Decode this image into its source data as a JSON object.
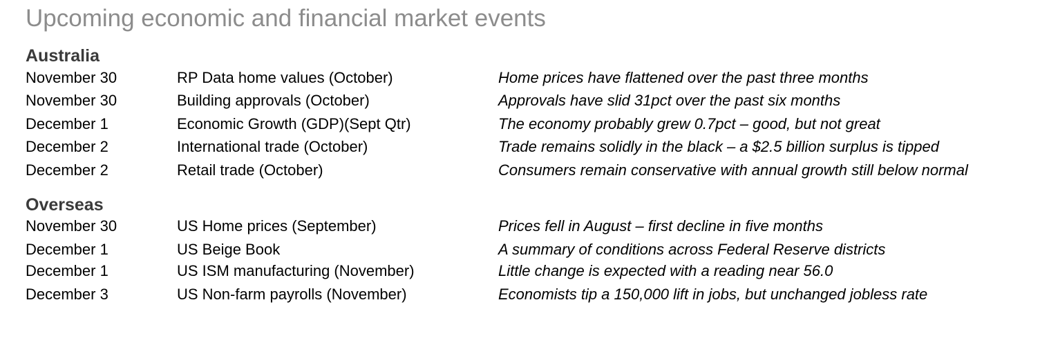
{
  "title": "Upcoming economic and financial market events",
  "sections": [
    {
      "heading": "Australia",
      "rows": [
        {
          "date": "November 30",
          "event": "RP Data home values (October)",
          "comment": "Home prices have flattened over the past three months"
        },
        {
          "date": "November 30",
          "event": "Building approvals (October)",
          "comment": "Approvals have slid 31pct over the past six months"
        },
        {
          "date": "December 1",
          "event": "Economic Growth (GDP)(Sept Qtr)",
          "comment": "The economy probably grew 0.7pct – good, but not great"
        },
        {
          "date": "December 2",
          "event": "International trade (October)",
          "comment": "Trade remains solidly in the black – a $2.5 billion surplus is tipped"
        },
        {
          "date": "December 2",
          "event": "Retail trade (October)",
          "comment": "Consumers remain conservative with annual growth still below normal"
        }
      ]
    },
    {
      "heading": "Overseas",
      "rows": [
        {
          "date": "November 30",
          "event": "US Home prices (September)",
          "comment": "Prices fell in August – first decline in five months"
        },
        {
          "date": "December 1",
          "event": "US Beige Book",
          "comment": "A summary of conditions across Federal Reserve districts"
        },
        {
          "date": "December 1",
          "event": "US ISM manufacturing (November)",
          "comment": "Little change is expected with a reading near 56.0"
        },
        {
          "date": "December 3",
          "event": "US Non-farm payrolls (November)",
          "comment": "Economists tip a 150,000 lift in jobs, but unchanged jobless rate"
        }
      ]
    }
  ]
}
